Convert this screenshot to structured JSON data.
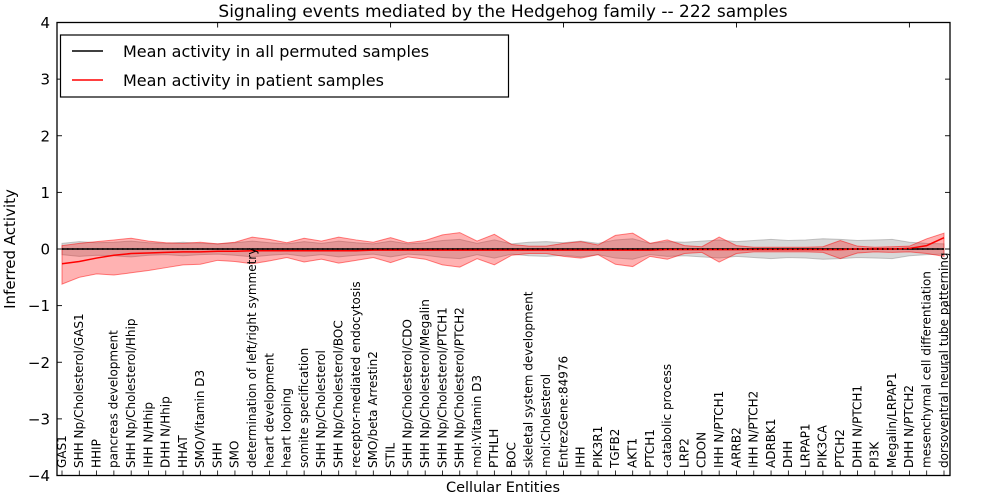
{
  "title": "Signaling events mediated by the Hedgehog family -- 222 samples",
  "axes": {
    "ylabel": "Inferred Activity",
    "xlabel": "Cellular Entities",
    "ylim": [
      -4,
      4
    ],
    "ytick_values": [
      4,
      3,
      2,
      1,
      0,
      -1,
      -2,
      -3,
      -4
    ],
    "ytick_labels": [
      "4",
      "3",
      "2",
      "1",
      "0",
      "−1",
      "−2",
      "−3",
      "−4"
    ],
    "grid": "off",
    "legend_position": "upper-left"
  },
  "chart_data": {
    "type": "line",
    "title": "Signaling events mediated by the Hedgehog family -- 222 samples",
    "xlabel": "Cellular Entities",
    "ylabel": "Inferred Activity",
    "ylim": [
      -4,
      4
    ],
    "categories": [
      "GAS1",
      "SHH Np/Cholesterol/GAS1",
      "HHIP",
      "pancreas development",
      "SHH Np/Cholesterol/Hhip",
      "IHH N/Hhip",
      "DHH N/Hhip",
      "HHAT",
      "SMO/Vitamin D3",
      "SHH",
      "SMO",
      "determination of left/right symmetry",
      "heart development",
      "heart looping",
      "somite specification",
      "SHH Np/Cholesterol",
      "SHH Np/Cholesterol/BOC",
      "receptor-mediated endocytosis",
      "SMO/beta Arrestin2",
      "STIL",
      "SHH Np/Cholesterol/CDO",
      "SHH Np/Cholesterol/Megalin",
      "SHH Np/Cholesterol/PTCH1",
      "SHH Np/Cholesterol/PTCH2",
      "mol:Vitamin D3",
      "PTHLH",
      "BOC",
      "skeletal system development",
      "mol:Cholesterol",
      "EntrezGene:84976",
      "IHH",
      "PIK3R1",
      "TGFB2",
      "AKT1",
      "PTCH1",
      "catabolic process",
      "LRP2",
      "CDON",
      "IHH N/PTCH1",
      "ARRB2",
      "IHH N/PTCH2",
      "ADRBK1",
      "DHH",
      "LRPAP1",
      "PIK3CA",
      "PTCH2",
      "DHH N/PTCH1",
      "PI3K",
      "Megalin/LRPAP1",
      "DHH N/PTCH2",
      "mesenchymal cell differentiation",
      "dorsoventral neural tube patterning"
    ],
    "series": [
      {
        "name": "Mean activity in all permuted samples",
        "color": "#000000",
        "values": [
          0,
          0,
          0,
          0,
          0,
          0,
          0,
          0,
          0,
          0,
          0,
          0,
          0,
          0,
          0,
          0,
          0,
          0,
          0,
          0,
          0,
          0,
          0,
          0,
          0,
          0,
          0,
          0,
          0,
          0,
          0,
          0,
          0,
          0,
          0,
          0,
          0,
          0,
          0,
          0,
          0,
          0,
          0,
          0,
          0,
          0,
          0,
          0,
          0,
          0,
          0,
          0
        ]
      },
      {
        "name": "Mean activity in patient samples",
        "color": "#ff0000",
        "values": [
          -0.26,
          -0.22,
          -0.16,
          -0.11,
          -0.08,
          -0.07,
          -0.06,
          -0.05,
          -0.05,
          -0.04,
          -0.04,
          -0.03,
          -0.03,
          -0.03,
          -0.03,
          -0.03,
          -0.03,
          -0.03,
          -0.02,
          -0.02,
          -0.02,
          -0.02,
          -0.02,
          -0.02,
          -0.02,
          -0.02,
          -0.02,
          -0.02,
          -0.02,
          -0.02,
          -0.02,
          -0.02,
          -0.02,
          -0.02,
          -0.02,
          -0.01,
          -0.01,
          -0.01,
          -0.01,
          -0.01,
          -0.01,
          -0.01,
          -0.01,
          -0.01,
          -0.01,
          -0.01,
          0.0,
          0.0,
          0.0,
          0.01,
          0.06,
          0.2
        ]
      }
    ],
    "bands": [
      {
        "name": "permuted-samples-range",
        "color": "#999999",
        "opacity": 0.38,
        "upper": [
          0.1,
          0.13,
          0.11,
          0.12,
          0.14,
          0.11,
          0.1,
          0.12,
          0.1,
          0.09,
          0.11,
          0.14,
          0.11,
          0.09,
          0.13,
          0.1,
          0.14,
          0.11,
          0.09,
          0.14,
          0.09,
          0.11,
          0.15,
          0.17,
          0.1,
          0.16,
          0.09,
          0.12,
          0.13,
          0.11,
          0.14,
          0.1,
          0.16,
          0.18,
          0.1,
          0.13,
          0.12,
          0.14,
          0.16,
          0.13,
          0.15,
          0.17,
          0.15,
          0.16,
          0.18,
          0.17,
          0.15,
          0.16,
          0.17,
          0.12,
          0.1,
          0.09
        ],
        "lower": [
          -0.1,
          -0.13,
          -0.11,
          -0.12,
          -0.14,
          -0.11,
          -0.1,
          -0.12,
          -0.1,
          -0.09,
          -0.11,
          -0.14,
          -0.11,
          -0.09,
          -0.13,
          -0.1,
          -0.14,
          -0.11,
          -0.09,
          -0.14,
          -0.09,
          -0.11,
          -0.15,
          -0.17,
          -0.1,
          -0.16,
          -0.09,
          -0.12,
          -0.13,
          -0.11,
          -0.14,
          -0.1,
          -0.16,
          -0.18,
          -0.1,
          -0.13,
          -0.12,
          -0.14,
          -0.16,
          -0.13,
          -0.15,
          -0.17,
          -0.15,
          -0.16,
          -0.18,
          -0.17,
          -0.15,
          -0.16,
          -0.17,
          -0.12,
          -0.1,
          -0.09
        ]
      },
      {
        "name": "patient-samples-range",
        "color": "#ff0000",
        "opacity": 0.3,
        "upper": [
          0.06,
          0.1,
          0.13,
          0.16,
          0.19,
          0.14,
          0.11,
          0.1,
          0.12,
          0.09,
          0.12,
          0.21,
          0.17,
          0.11,
          0.19,
          0.14,
          0.21,
          0.16,
          0.12,
          0.2,
          0.11,
          0.15,
          0.25,
          0.29,
          0.14,
          0.26,
          0.08,
          0.05,
          0.05,
          0.1,
          0.13,
          0.07,
          0.24,
          0.28,
          0.1,
          0.16,
          0.06,
          0.04,
          0.21,
          0.06,
          0.03,
          0.03,
          0.03,
          0.03,
          0.04,
          0.15,
          0.05,
          0.03,
          0.04,
          0.05,
          0.18,
          0.28
        ],
        "lower": [
          -0.62,
          -0.5,
          -0.44,
          -0.46,
          -0.42,
          -0.38,
          -0.33,
          -0.28,
          -0.27,
          -0.2,
          -0.22,
          -0.26,
          -0.21,
          -0.15,
          -0.23,
          -0.18,
          -0.25,
          -0.2,
          -0.15,
          -0.24,
          -0.14,
          -0.18,
          -0.28,
          -0.32,
          -0.17,
          -0.28,
          -0.11,
          -0.08,
          -0.08,
          -0.13,
          -0.16,
          -0.1,
          -0.27,
          -0.31,
          -0.13,
          -0.18,
          -0.08,
          -0.06,
          -0.23,
          -0.08,
          -0.05,
          -0.05,
          -0.05,
          -0.05,
          -0.06,
          -0.17,
          -0.07,
          -0.05,
          -0.06,
          -0.05,
          -0.08,
          -0.13
        ]
      }
    ]
  },
  "legend": {
    "entries": [
      {
        "label": "Mean activity in all permuted samples",
        "color": "#000000"
      },
      {
        "label": "Mean activity in patient samples",
        "color": "#ff0000"
      }
    ]
  }
}
